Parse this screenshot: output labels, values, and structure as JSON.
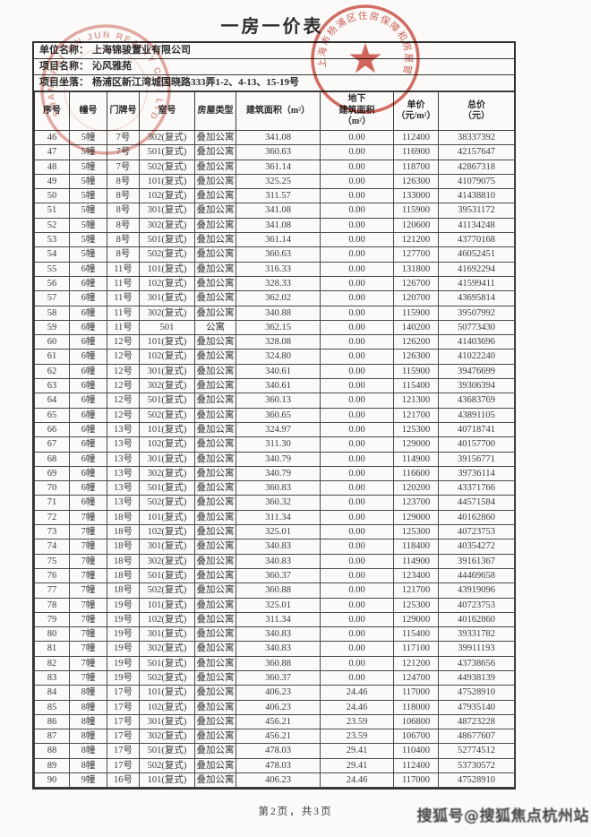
{
  "document": {
    "title": "一房一价表",
    "info": [
      {
        "label": "单位名称：",
        "value": "上海锦骏置业有限公司"
      },
      {
        "label": "项目名称：",
        "value": "沁风雅苑"
      },
      {
        "label": "项目坐落：",
        "value": "杨浦区新江湾城国晓路333弄1-2、4-13、15-19号"
      }
    ],
    "footer": "第2页，共3页",
    "watermark": "搜狐号@搜狐焦点杭州站"
  },
  "stamps": {
    "company_seal_text": "SHANGHAI JIN JUN REALTY CO., LTD.",
    "authority_seal_text": "上海市杨浦区住房保障和房屋管理局",
    "star_icon": "★",
    "seal_color": "#c0392b"
  },
  "table": {
    "columns": [
      "序号",
      "幢号",
      "门牌号",
      "室号",
      "房屋类型",
      "建筑面积（m²）",
      "地下\n建筑面积\n（m²）",
      "单价\n（元/m²）",
      "总价\n（元）"
    ],
    "rows": [
      [
        "46",
        "5幢",
        "7号",
        "302(复式)",
        "叠加公寓",
        "341.08",
        "0.00",
        "112400",
        "38337392"
      ],
      [
        "47",
        "5幢",
        "7号",
        "501(复式)",
        "叠加公寓",
        "360.63",
        "0.00",
        "116900",
        "42157647"
      ],
      [
        "48",
        "5幢",
        "7号",
        "502(复式)",
        "叠加公寓",
        "361.14",
        "0.00",
        "118700",
        "42867318"
      ],
      [
        "49",
        "5幢",
        "8号",
        "101(复式)",
        "叠加公寓",
        "325.25",
        "0.00",
        "126300",
        "41079075"
      ],
      [
        "50",
        "5幢",
        "8号",
        "102(复式)",
        "叠加公寓",
        "311.57",
        "0.00",
        "133000",
        "41438810"
      ],
      [
        "51",
        "5幢",
        "8号",
        "301(复式)",
        "叠加公寓",
        "341.08",
        "0.00",
        "115900",
        "39531172"
      ],
      [
        "52",
        "5幢",
        "8号",
        "302(复式)",
        "叠加公寓",
        "341.08",
        "0.00",
        "120600",
        "41134248"
      ],
      [
        "53",
        "5幢",
        "8号",
        "501(复式)",
        "叠加公寓",
        "361.14",
        "0.00",
        "121200",
        "43770168"
      ],
      [
        "54",
        "5幢",
        "8号",
        "502(复式)",
        "叠加公寓",
        "360.63",
        "0.00",
        "127700",
        "46052451"
      ],
      [
        "55",
        "6幢",
        "11号",
        "101(复式)",
        "叠加公寓",
        "316.33",
        "0.00",
        "131800",
        "41692294"
      ],
      [
        "56",
        "6幢",
        "11号",
        "102(复式)",
        "叠加公寓",
        "328.33",
        "0.00",
        "126700",
        "41599411"
      ],
      [
        "57",
        "6幢",
        "11号",
        "301(复式)",
        "叠加公寓",
        "362.02",
        "0.00",
        "120700",
        "43695814"
      ],
      [
        "58",
        "6幢",
        "11号",
        "302(复式)",
        "叠加公寓",
        "340.88",
        "0.00",
        "115900",
        "39507992"
      ],
      [
        "59",
        "6幢",
        "11号",
        "501",
        "公寓",
        "362.15",
        "0.00",
        "140200",
        "50773430"
      ],
      [
        "60",
        "6幢",
        "12号",
        "101(复式)",
        "叠加公寓",
        "328.08",
        "0.00",
        "126200",
        "41403696"
      ],
      [
        "61",
        "6幢",
        "12号",
        "102(复式)",
        "叠加公寓",
        "324.80",
        "0.00",
        "126300",
        "41022240"
      ],
      [
        "62",
        "6幢",
        "12号",
        "301(复式)",
        "叠加公寓",
        "340.61",
        "0.00",
        "115900",
        "39476699"
      ],
      [
        "63",
        "6幢",
        "12号",
        "302(复式)",
        "叠加公寓",
        "340.61",
        "0.00",
        "115400",
        "39306394"
      ],
      [
        "64",
        "6幢",
        "12号",
        "501(复式)",
        "叠加公寓",
        "360.13",
        "0.00",
        "121300",
        "43683769"
      ],
      [
        "65",
        "6幢",
        "12号",
        "502(复式)",
        "叠加公寓",
        "360.65",
        "0.00",
        "121700",
        "43891105"
      ],
      [
        "66",
        "6幢",
        "13号",
        "101(复式)",
        "叠加公寓",
        "324.97",
        "0.00",
        "125300",
        "40718741"
      ],
      [
        "67",
        "6幢",
        "13号",
        "102(复式)",
        "叠加公寓",
        "311.30",
        "0.00",
        "129000",
        "40157700"
      ],
      [
        "68",
        "6幢",
        "13号",
        "301(复式)",
        "叠加公寓",
        "340.79",
        "0.00",
        "114900",
        "39156771"
      ],
      [
        "69",
        "6幢",
        "13号",
        "302(复式)",
        "叠加公寓",
        "340.79",
        "0.00",
        "116600",
        "39736114"
      ],
      [
        "70",
        "6幢",
        "13号",
        "501(复式)",
        "叠加公寓",
        "360.83",
        "0.00",
        "120200",
        "43371766"
      ],
      [
        "71",
        "6幢",
        "13号",
        "502(复式)",
        "叠加公寓",
        "360.32",
        "0.00",
        "123700",
        "44571584"
      ],
      [
        "72",
        "7幢",
        "18号",
        "101(复式)",
        "叠加公寓",
        "311.34",
        "0.00",
        "129000",
        "40162860"
      ],
      [
        "73",
        "7幢",
        "18号",
        "102(复式)",
        "叠加公寓",
        "325.01",
        "0.00",
        "125300",
        "40723753"
      ],
      [
        "74",
        "7幢",
        "18号",
        "301(复式)",
        "叠加公寓",
        "340.83",
        "0.00",
        "118400",
        "40354272"
      ],
      [
        "75",
        "7幢",
        "18号",
        "302(复式)",
        "叠加公寓",
        "340.83",
        "0.00",
        "114900",
        "39161367"
      ],
      [
        "76",
        "7幢",
        "18号",
        "501(复式)",
        "叠加公寓",
        "360.37",
        "0.00",
        "123400",
        "44469658"
      ],
      [
        "77",
        "7幢",
        "18号",
        "502(复式)",
        "叠加公寓",
        "360.88",
        "0.00",
        "121700",
        "43919096"
      ],
      [
        "78",
        "7幢",
        "19号",
        "101(复式)",
        "叠加公寓",
        "325.01",
        "0.00",
        "125300",
        "40723753"
      ],
      [
        "79",
        "7幢",
        "19号",
        "102(复式)",
        "叠加公寓",
        "311.34",
        "0.00",
        "129000",
        "40162860"
      ],
      [
        "80",
        "7幢",
        "19号",
        "301(复式)",
        "叠加公寓",
        "340.83",
        "0.00",
        "115400",
        "39331782"
      ],
      [
        "81",
        "7幢",
        "19号",
        "302(复式)",
        "叠加公寓",
        "340.83",
        "0.00",
        "117100",
        "39911193"
      ],
      [
        "82",
        "7幢",
        "19号",
        "501(复式)",
        "叠加公寓",
        "360.88",
        "0.00",
        "121200",
        "43738656"
      ],
      [
        "83",
        "7幢",
        "19号",
        "502(复式)",
        "叠加公寓",
        "360.37",
        "0.00",
        "124700",
        "44938139"
      ],
      [
        "84",
        "8幢",
        "17号",
        "101(复式)",
        "叠加公寓",
        "406.23",
        "24.46",
        "117000",
        "47528910"
      ],
      [
        "85",
        "8幢",
        "17号",
        "102(复式)",
        "叠加公寓",
        "406.23",
        "24.46",
        "118000",
        "47935140"
      ],
      [
        "86",
        "8幢",
        "17号",
        "301(复式)",
        "叠加公寓",
        "456.21",
        "23.59",
        "106800",
        "48723228"
      ],
      [
        "87",
        "8幢",
        "17号",
        "302(复式)",
        "叠加公寓",
        "456.21",
        "23.59",
        "106700",
        "48677607"
      ],
      [
        "88",
        "8幢",
        "17号",
        "501(复式)",
        "叠加公寓",
        "478.03",
        "29.41",
        "110400",
        "52774512"
      ],
      [
        "89",
        "8幢",
        "17号",
        "502(复式)",
        "叠加公寓",
        "478.03",
        "29.41",
        "112400",
        "53730572"
      ],
      [
        "90",
        "9幢",
        "16号",
        "101(复式)",
        "叠加公寓",
        "406.23",
        "24.46",
        "117000",
        "47528910"
      ]
    ]
  }
}
